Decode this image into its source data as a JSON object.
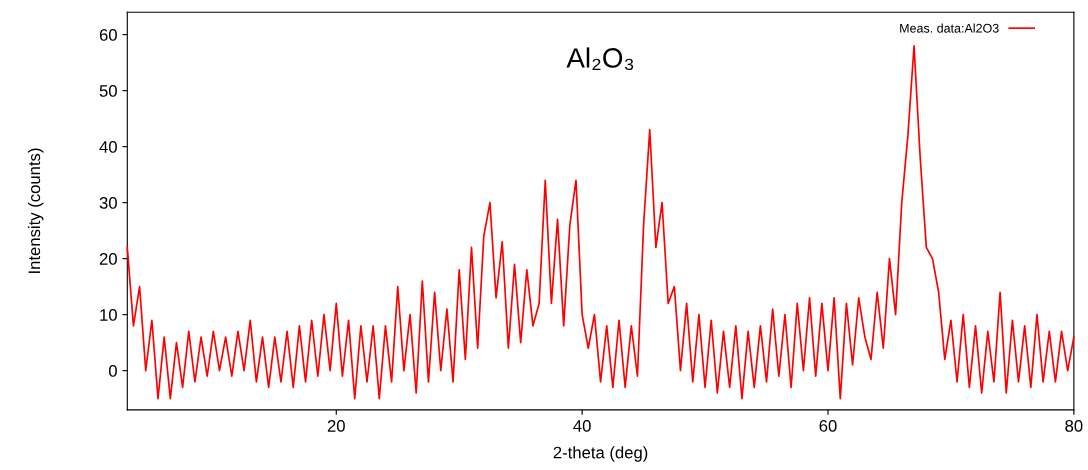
{
  "chart_data": {
    "type": "line",
    "title": "Al₂O₃",
    "xlabel": "2-theta (deg)",
    "ylabel": "Intensity (counts)",
    "x": [
      3.0,
      3.5,
      4.0,
      4.5,
      5.0,
      5.5,
      6.0,
      6.5,
      7.0,
      7.5,
      8.0,
      8.5,
      9.0,
      9.5,
      10.0,
      10.5,
      11.0,
      11.5,
      12.0,
      12.5,
      13.0,
      13.5,
      14.0,
      14.5,
      15.0,
      15.5,
      16.0,
      16.5,
      17.0,
      17.5,
      18.0,
      18.5,
      19.0,
      19.5,
      20.0,
      20.5,
      21.0,
      21.5,
      22.0,
      22.5,
      23.0,
      23.5,
      24.0,
      24.5,
      25.0,
      25.5,
      26.0,
      26.5,
      27.0,
      27.5,
      28.0,
      28.5,
      29.0,
      29.5,
      30.0,
      30.5,
      31.0,
      31.5,
      32.0,
      32.5,
      33.0,
      33.5,
      34.0,
      34.5,
      35.0,
      35.5,
      36.0,
      36.5,
      37.0,
      37.5,
      38.0,
      38.5,
      39.0,
      39.5,
      40.0,
      40.5,
      41.0,
      41.5,
      42.0,
      42.5,
      43.0,
      43.5,
      44.0,
      44.5,
      45.0,
      45.5,
      46.0,
      46.5,
      47.0,
      47.5,
      48.0,
      48.5,
      49.0,
      49.5,
      50.0,
      50.5,
      51.0,
      51.5,
      52.0,
      52.5,
      53.0,
      53.5,
      54.0,
      54.5,
      55.0,
      55.5,
      56.0,
      56.5,
      57.0,
      57.5,
      58.0,
      58.5,
      59.0,
      59.5,
      60.0,
      60.5,
      61.0,
      61.5,
      62.0,
      62.5,
      63.0,
      63.5,
      64.0,
      64.5,
      65.0,
      65.5,
      66.0,
      66.5,
      67.0,
      67.5,
      68.0,
      68.5,
      69.0,
      69.5,
      70.0,
      70.5,
      71.0,
      71.5,
      72.0,
      72.5,
      73.0,
      73.5,
      74.0,
      74.5,
      75.0,
      75.5,
      76.0,
      76.5,
      77.0,
      77.5,
      78.0,
      78.5,
      79.0,
      79.5,
      80.0
    ],
    "series": [
      {
        "name": "Meas. data:Al2O3",
        "color": "#ff0000",
        "values": [
          22,
          8,
          15,
          0,
          9,
          -5,
          6,
          -5,
          5,
          -3,
          7,
          -2,
          6,
          -1,
          7,
          0,
          6,
          -1,
          7,
          0,
          9,
          -2,
          6,
          -3,
          6,
          -2,
          7,
          -3,
          8,
          -2,
          9,
          -1,
          10,
          0,
          12,
          -1,
          9,
          -5,
          8,
          -2,
          8,
          -5,
          8,
          -2,
          15,
          0,
          10,
          -4,
          16,
          -2,
          14,
          0,
          11,
          -2,
          18,
          2,
          22,
          4,
          24,
          30,
          13,
          23,
          4,
          19,
          5,
          18,
          8,
          12,
          34,
          12,
          27,
          8,
          26,
          34,
          10,
          4,
          10,
          -2,
          8,
          -3,
          9,
          -3,
          8,
          -1,
          26,
          43,
          22,
          30,
          12,
          15,
          0,
          12,
          -2,
          10,
          -3,
          9,
          -4,
          7,
          -3,
          8,
          -5,
          7,
          -3,
          8,
          -2,
          11,
          -1,
          10,
          -3,
          12,
          0,
          13,
          -1,
          12,
          0,
          13,
          -5,
          12,
          1,
          13,
          6,
          2,
          14,
          4,
          20,
          10,
          30,
          42,
          58,
          38,
          22,
          20,
          14,
          2,
          9,
          -2,
          10,
          -3,
          8,
          -4,
          7,
          -2,
          14,
          -4,
          9,
          -2,
          8,
          -3,
          10,
          -2,
          7,
          -2,
          7,
          0,
          6
        ]
      }
    ],
    "xlim": [
      3,
      80
    ],
    "xticks": [
      20,
      40,
      60,
      80
    ],
    "ylim": [
      -7,
      64
    ],
    "yticks": [
      0,
      10,
      20,
      30,
      40,
      50,
      60
    ],
    "legend": "top right",
    "grid": false,
    "marker": "none",
    "line_style": "solid"
  }
}
